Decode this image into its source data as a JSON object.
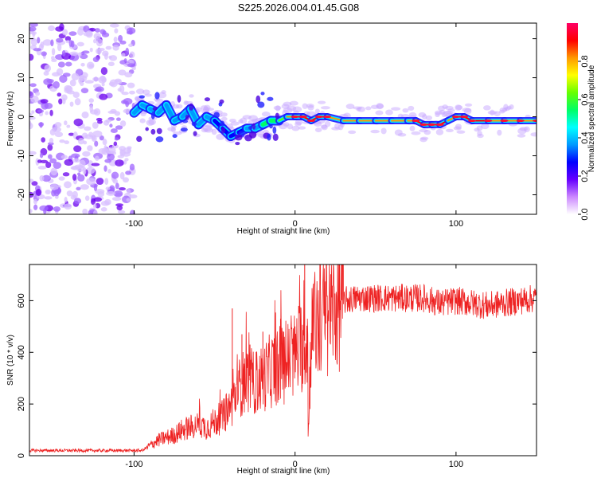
{
  "title": "S225.2026.004.01.45.G08",
  "chart_data": [
    {
      "type": "heatmap",
      "xlabel": "Height of straight line (km)",
      "ylabel": "Frequency (Hz)",
      "xlim": [
        -165,
        150
      ],
      "ylim": [
        -25,
        24
      ],
      "xticks": [
        -100,
        0,
        100
      ],
      "yticks": [
        -20,
        -10,
        0,
        10,
        20
      ],
      "colorbar": {
        "label": "Normalized spectral amplitude",
        "range": [
          0,
          1
        ],
        "ticks": [
          "0.0",
          "0.2",
          "0.4",
          "0.6",
          "0.8"
        ],
        "colors": [
          "#ffffff",
          "#cc88ff",
          "#6600ff",
          "#0000ff",
          "#0099ff",
          "#00ffff",
          "#00ff66",
          "#66ff00",
          "#ffff00",
          "#ff9900",
          "#ff0000",
          "#ff0066"
        ]
      },
      "ridge": {
        "x": [
          -100,
          -95,
          -90,
          -85,
          -80,
          -75,
          -70,
          -65,
          -60,
          -55,
          -50,
          -45,
          -40,
          -35,
          -30,
          -25,
          -20,
          -15,
          -10,
          -5,
          0,
          5,
          10,
          15,
          20,
          30,
          40,
          50,
          60,
          70,
          75,
          80,
          85,
          90,
          95,
          100,
          105,
          110,
          120,
          130,
          140,
          150
        ],
        "y": [
          1,
          3,
          2,
          1,
          3,
          -1,
          0,
          2,
          -2,
          0,
          -1,
          -3,
          -5,
          -4,
          -3,
          -3,
          -2,
          -1,
          -1,
          0,
          0,
          0,
          -1,
          0,
          0,
          -1,
          -1,
          -1,
          -1,
          -1,
          -1,
          -2,
          -2,
          -2,
          -1,
          0,
          0,
          -1,
          -1,
          -1,
          -1,
          -1
        ],
        "amplitude": [
          0.3,
          0.35,
          0.4,
          0.35,
          0.45,
          0.3,
          0.35,
          0.4,
          0.35,
          0.3,
          0.35,
          0.25,
          0.3,
          0.25,
          0.3,
          0.35,
          0.45,
          0.55,
          0.6,
          0.7,
          0.85,
          0.9,
          0.9,
          0.95,
          0.85,
          0.8,
          0.8,
          0.8,
          0.8,
          0.8,
          0.9,
          0.95,
          0.95,
          0.95,
          0.8,
          0.85,
          0.9,
          0.9,
          0.85,
          0.85,
          0.85,
          0.85
        ]
      },
      "noise_region_x": [
        -165,
        -100
      ]
    },
    {
      "type": "line",
      "xlabel": "Height of straight line (km)",
      "ylabel": "SNR (10 * v/v)",
      "xlim": [
        -165,
        150
      ],
      "ylim": [
        0,
        740
      ],
      "xticks": [
        -100,
        0,
        100
      ],
      "yticks": [
        0,
        200,
        400,
        600
      ],
      "series": [
        {
          "name": "SNR",
          "color": "#ee2222",
          "x": [
            -165,
            -150,
            -130,
            -110,
            -95,
            -90,
            -85,
            -80,
            -75,
            -70,
            -65,
            -60,
            -55,
            -50,
            -45,
            -40,
            -35,
            -30,
            -25,
            -20,
            -15,
            -10,
            -5,
            0,
            3,
            5,
            7,
            8,
            10,
            15,
            20,
            25,
            30,
            40,
            50,
            60,
            70,
            80,
            90,
            100,
            110,
            120,
            130,
            140,
            150
          ],
          "y": [
            20,
            20,
            20,
            20,
            20,
            40,
            60,
            70,
            80,
            100,
            110,
            120,
            110,
            130,
            150,
            190,
            260,
            300,
            280,
            300,
            330,
            350,
            360,
            390,
            420,
            440,
            450,
            40,
            480,
            520,
            550,
            570,
            600,
            610,
            610,
            610,
            610,
            610,
            590,
            600,
            590,
            580,
            590,
            600,
            610
          ]
        }
      ],
      "spikes": [
        {
          "x": -39,
          "y": 570
        },
        {
          "x": -33,
          "y": 470
        },
        {
          "x": -28,
          "y": 430
        },
        {
          "x": -20,
          "y": 480
        },
        {
          "x": -9,
          "y": 530
        },
        {
          "x": 6,
          "y": 740
        },
        {
          "x": 8,
          "y": 40
        }
      ]
    }
  ]
}
